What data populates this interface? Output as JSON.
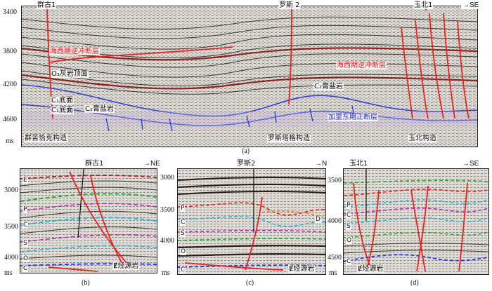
{
  "panel_a": {
    "y_ticks": [
      "3400",
      "3800",
      "4200",
      "4600"
    ],
    "unit": "ms",
    "wells": [
      "群古1",
      "罗斯 2",
      "玉北1"
    ],
    "direction": "SE",
    "labels": {
      "thrust_left": "海西期逆冲断层",
      "thrust_right": "海西期逆冲断层",
      "o_limestone": "O₃灰岩顶面",
      "c1_base": "C₁底面",
      "c1_base_lower": "C₁底面",
      "c2_gypsum_left": "C₂膏盐岩",
      "c2_gypsum_right": "C₂膏盐岩",
      "caledonian": "加里东期正断层"
    },
    "structures": [
      "群苦恰克构造",
      "罗斯塔格构造",
      "玉北构造"
    ],
    "caption": "(a)"
  },
  "panel_b": {
    "well": "群古1",
    "direction": "NE",
    "y_ticks": [
      "3000",
      "3500",
      "4000"
    ],
    "unit": "ms",
    "strata": [
      "E",
      "P",
      "C",
      "S",
      "O",
      "C"
    ],
    "source_rock": "Ɇ烃源岩",
    "caption": "(b)"
  },
  "panel_c": {
    "well": "罗斯2",
    "direction": "N",
    "y_ticks": [
      "3000",
      "3500",
      "4000"
    ],
    "unit": "ms",
    "strata": [
      "P",
      "C",
      "S",
      "O",
      "C"
    ],
    "right_label": "D",
    "source_rock": "Ɇ烃源岩",
    "caption": "(c)"
  },
  "panel_d": {
    "well": "玉北1",
    "direction": "SE",
    "y_ticks": [
      "3500",
      "4000",
      "4500"
    ],
    "unit": "ms",
    "strata": [
      "P",
      "C",
      "S",
      "O",
      "C"
    ],
    "source_rock": "Ɇ烃源岩",
    "caption": "(d)"
  },
  "colors": {
    "fault": "#e8231e",
    "horizon_blue": "#3040d8",
    "horizon_green": "#2aa838",
    "horizon_cyan": "#24b6d6",
    "horizon_purple": "#b030a8"
  }
}
